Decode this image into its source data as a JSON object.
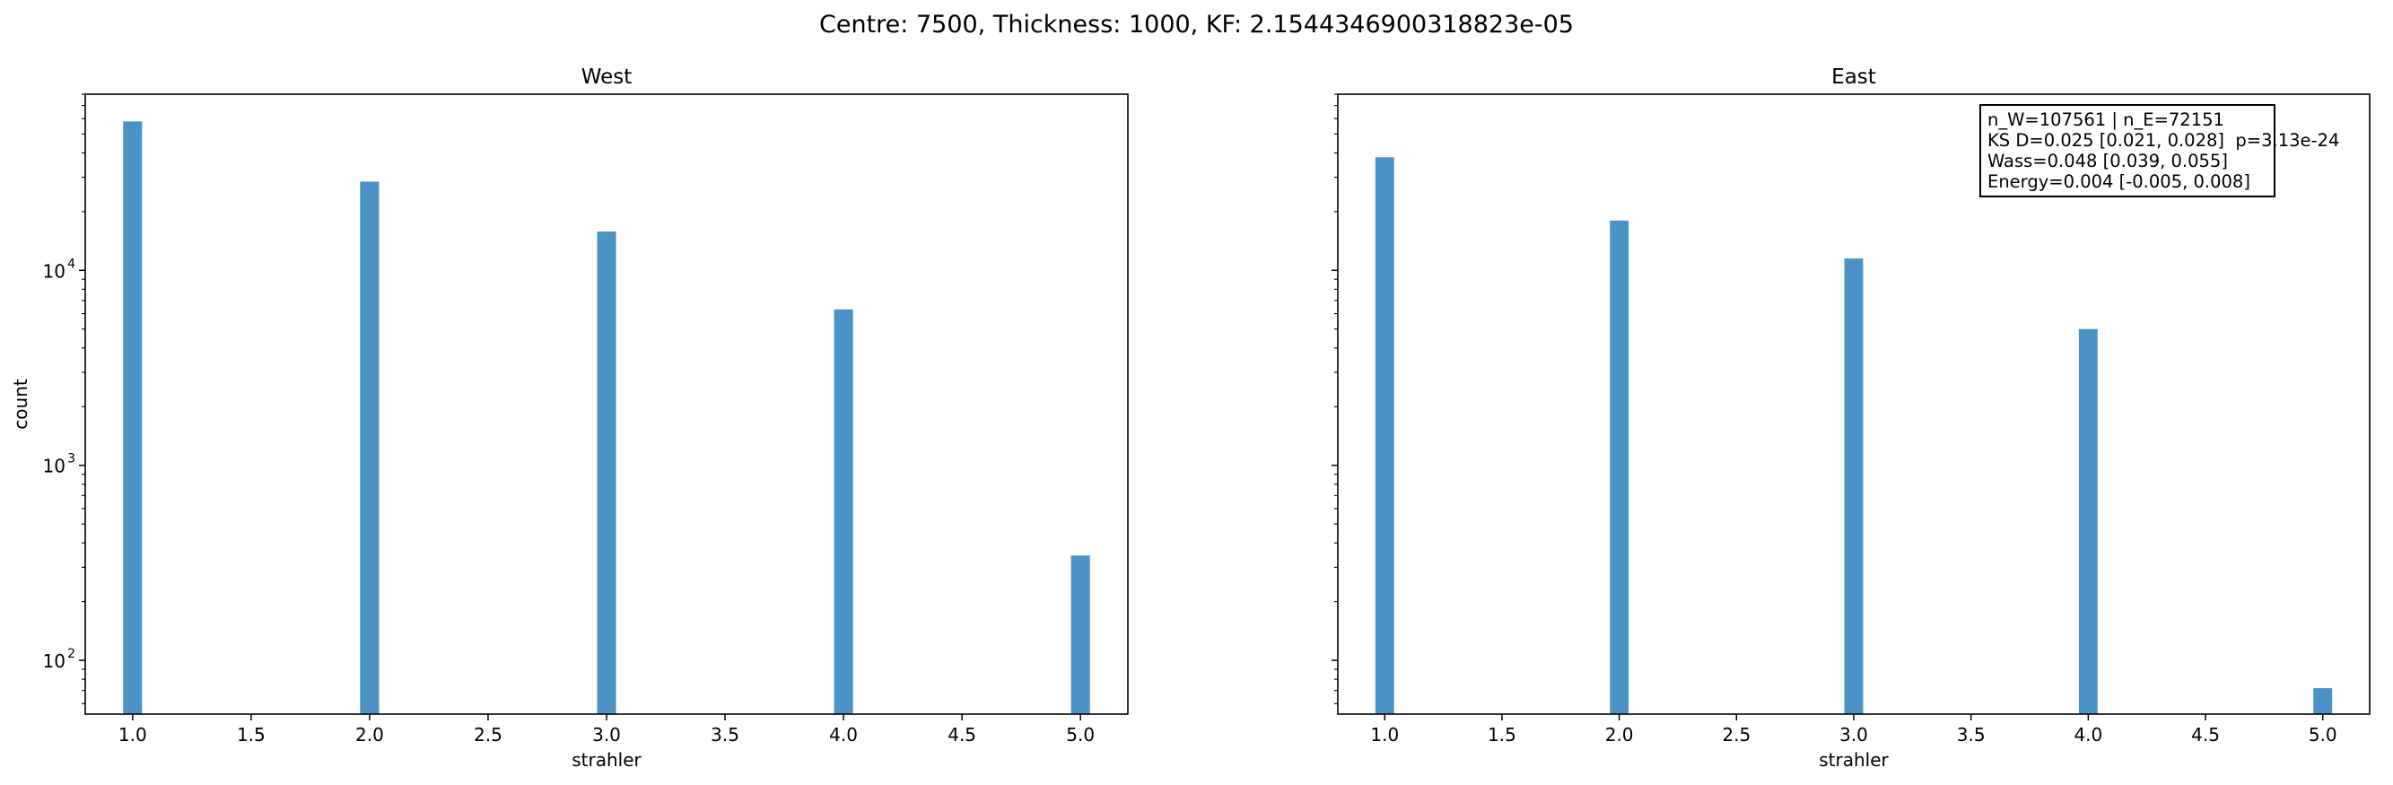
{
  "suptitle": "Centre: 7500, Thickness: 1000, KF: 2.1544346900318823e-05",
  "chart_data": [
    {
      "type": "bar",
      "title": "West",
      "xlabel": "strahler",
      "ylabel": "count",
      "yscale": "log",
      "ylim": [
        53,
        80000
      ],
      "xlim": [
        0.8,
        5.2
      ],
      "xticks": [
        "1.0",
        "1.5",
        "2.0",
        "2.5",
        "3.0",
        "3.5",
        "4.0",
        "4.5",
        "5.0"
      ],
      "yticks": [
        {
          "label": "10",
          "exp": "2",
          "value": 100
        },
        {
          "label": "10",
          "exp": "3",
          "value": 1000
        },
        {
          "label": "10",
          "exp": "4",
          "value": 10000
        }
      ],
      "categories": [
        1,
        2,
        3,
        4,
        5
      ],
      "values": [
        58000,
        28500,
        15800,
        6300,
        345
      ],
      "bar_color": "#4c93c5",
      "legend": null
    },
    {
      "type": "bar",
      "title": "East",
      "xlabel": "strahler",
      "ylabel": "",
      "yscale": "log",
      "ylim": [
        53,
        80000
      ],
      "xlim": [
        0.8,
        5.2
      ],
      "xticks": [
        "1.0",
        "1.5",
        "2.0",
        "2.5",
        "3.0",
        "3.5",
        "4.0",
        "4.5",
        "5.0"
      ],
      "yticks": [],
      "categories": [
        1,
        2,
        3,
        4,
        5
      ],
      "values": [
        38000,
        18000,
        11500,
        5000,
        72
      ],
      "bar_color": "#4c93c5",
      "annotation": [
        "n_W=107561 | n_E=72151",
        "KS D=0.025 [0.021, 0.028]  p=3.13e-24",
        "Wass=0.048 [0.039, 0.055]",
        "Energy=0.004 [-0.005, 0.008]"
      ]
    }
  ]
}
